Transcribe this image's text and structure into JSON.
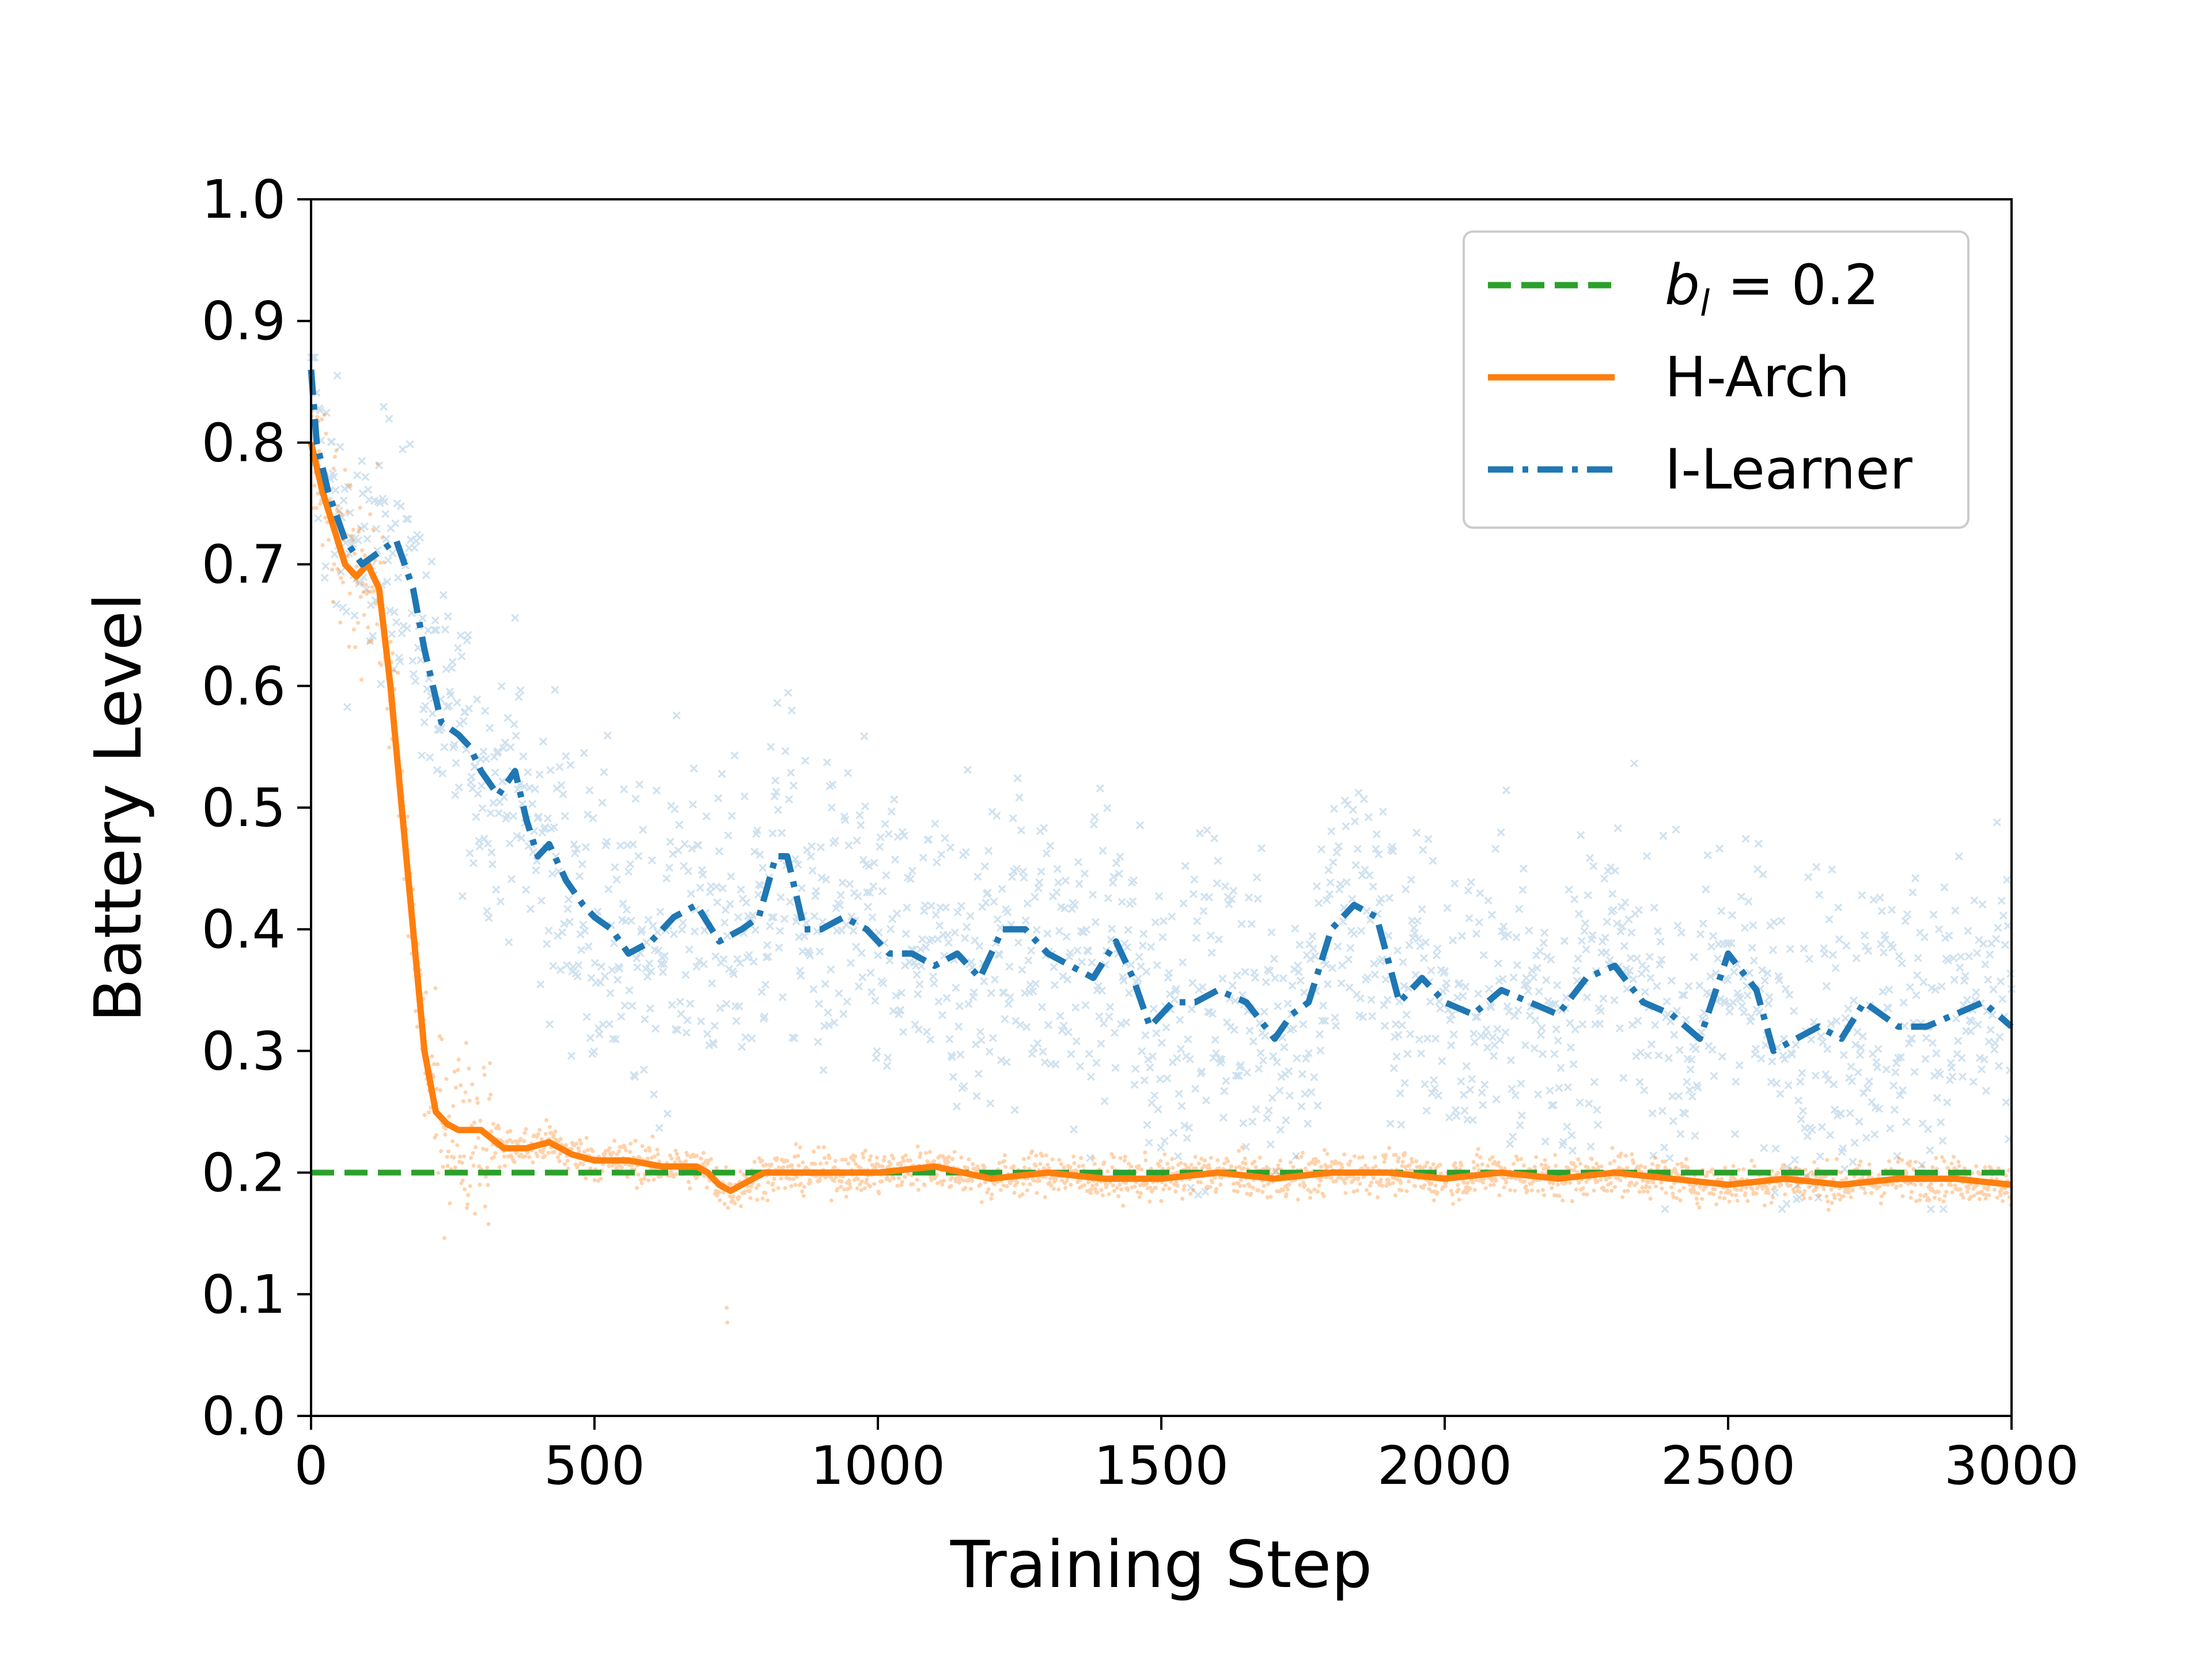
{
  "chart_data": {
    "type": "line",
    "title": "",
    "xlabel": "Training Step",
    "ylabel": "Battery Level",
    "xlim": [
      0,
      3000
    ],
    "ylim": [
      0.0,
      1.0
    ],
    "xticks": [
      "0",
      "500",
      "1000",
      "1500",
      "2000",
      "2500",
      "3000"
    ],
    "yticks": [
      "0.0",
      "0.1",
      "0.2",
      "0.3",
      "0.4",
      "0.5",
      "0.6",
      "0.7",
      "0.8",
      "0.9",
      "1.0"
    ],
    "grid": false,
    "legend_position": "top-right",
    "legend": {
      "baseline_prefix": "b",
      "baseline_subscript": "l",
      "baseline_suffix": " = 0.2",
      "harch": "H-Arch",
      "ilearner": "I-Learner"
    },
    "series": [
      {
        "name": "b_l = 0.2",
        "style": "dashed",
        "color": "#2ca02c",
        "x": [
          0,
          3000
        ],
        "values": [
          0.2,
          0.2
        ]
      },
      {
        "name": "H-Arch",
        "style": "solid",
        "color": "#ff7f0e",
        "x": [
          0,
          20,
          40,
          60,
          80,
          100,
          120,
          140,
          160,
          180,
          200,
          220,
          240,
          260,
          280,
          300,
          340,
          380,
          420,
          460,
          500,
          560,
          620,
          680,
          700,
          720,
          740,
          760,
          800,
          900,
          1000,
          1100,
          1200,
          1300,
          1400,
          1500,
          1600,
          1700,
          1800,
          1900,
          2000,
          2100,
          2200,
          2300,
          2400,
          2500,
          2600,
          2700,
          2800,
          2900,
          3000
        ],
        "values": [
          0.8,
          0.76,
          0.73,
          0.7,
          0.69,
          0.7,
          0.68,
          0.6,
          0.5,
          0.4,
          0.3,
          0.25,
          0.24,
          0.235,
          0.235,
          0.235,
          0.22,
          0.22,
          0.225,
          0.215,
          0.21,
          0.21,
          0.205,
          0.205,
          0.2,
          0.19,
          0.185,
          0.19,
          0.2,
          0.2,
          0.2,
          0.205,
          0.195,
          0.2,
          0.195,
          0.195,
          0.2,
          0.195,
          0.2,
          0.2,
          0.195,
          0.2,
          0.195,
          0.2,
          0.195,
          0.19,
          0.195,
          0.19,
          0.195,
          0.195,
          0.19
        ]
      },
      {
        "name": "I-Learner",
        "style": "dashdot",
        "color": "#1f77b4",
        "x": [
          0,
          10,
          30,
          60,
          90,
          120,
          150,
          180,
          200,
          230,
          260,
          280,
          300,
          330,
          360,
          380,
          400,
          420,
          450,
          480,
          500,
          530,
          560,
          600,
          640,
          680,
          720,
          760,
          790,
          820,
          840,
          870,
          900,
          940,
          980,
          1020,
          1060,
          1100,
          1140,
          1180,
          1220,
          1260,
          1300,
          1340,
          1380,
          1420,
          1450,
          1480,
          1520,
          1560,
          1600,
          1650,
          1700,
          1730,
          1760,
          1800,
          1840,
          1880,
          1920,
          1960,
          2000,
          2050,
          2100,
          2150,
          2200,
          2250,
          2300,
          2350,
          2400,
          2450,
          2500,
          2550,
          2580,
          2620,
          2660,
          2700,
          2740,
          2800,
          2850,
          2900,
          2950,
          3000
        ],
        "values": [
          0.86,
          0.8,
          0.76,
          0.72,
          0.7,
          0.71,
          0.72,
          0.68,
          0.63,
          0.57,
          0.56,
          0.55,
          0.53,
          0.51,
          0.53,
          0.49,
          0.46,
          0.47,
          0.44,
          0.42,
          0.41,
          0.4,
          0.38,
          0.39,
          0.41,
          0.42,
          0.39,
          0.4,
          0.41,
          0.46,
          0.46,
          0.4,
          0.4,
          0.41,
          0.4,
          0.38,
          0.38,
          0.37,
          0.38,
          0.36,
          0.4,
          0.4,
          0.38,
          0.37,
          0.36,
          0.39,
          0.36,
          0.32,
          0.34,
          0.34,
          0.35,
          0.34,
          0.31,
          0.33,
          0.34,
          0.4,
          0.42,
          0.41,
          0.34,
          0.36,
          0.34,
          0.33,
          0.35,
          0.34,
          0.33,
          0.36,
          0.37,
          0.34,
          0.33,
          0.31,
          0.38,
          0.35,
          0.3,
          0.31,
          0.32,
          0.31,
          0.34,
          0.32,
          0.32,
          0.33,
          0.34,
          0.32
        ]
      }
    ],
    "scatter_noise": [
      {
        "series": "H-Arch raw",
        "color": "#ff7f0e",
        "marker": "dot",
        "spread": 0.012,
        "early_spread": 0.05
      },
      {
        "series": "I-Learner raw",
        "color": "#1f77b4",
        "marker": "x",
        "spread": 0.09
      }
    ]
  }
}
